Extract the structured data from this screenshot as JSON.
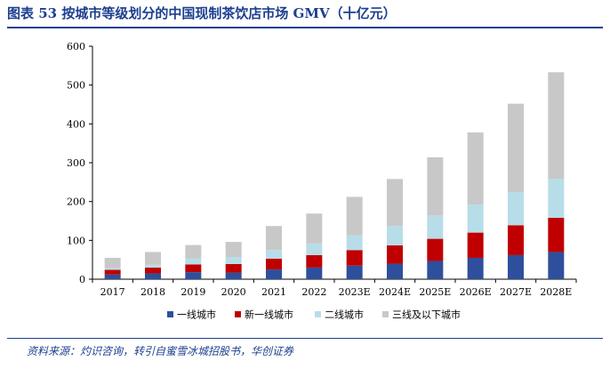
{
  "header": {
    "title": "图表 53  按城市等级划分的中国现制茶饮店市场 GMV（十亿元）"
  },
  "footer": {
    "source": "资料来源：灼识咨询，转引自蜜雪冰城招股书，华创证券"
  },
  "colors": {
    "rule": "#1c3f8f",
    "text": "#1c3f8f"
  },
  "chart_data": {
    "type": "bar",
    "stacked": true,
    "categories": [
      "2017",
      "2018",
      "2019",
      "2020",
      "2021",
      "2022",
      "2023E",
      "2024E",
      "2025E",
      "2026E",
      "2027E",
      "2028E"
    ],
    "ylim": [
      0,
      600
    ],
    "yticks": [
      0,
      100,
      200,
      300,
      400,
      500,
      600
    ],
    "legend_position": "bottom",
    "grid": false,
    "series": [
      {
        "name": "一线城市",
        "color": "#2e4f9b",
        "values": [
          12,
          15,
          18,
          17,
          25,
          30,
          35,
          40,
          47,
          55,
          62,
          70
        ]
      },
      {
        "name": "新一线城市",
        "color": "#c00000",
        "values": [
          12,
          15,
          20,
          22,
          28,
          32,
          40,
          47,
          57,
          65,
          77,
          88
        ]
      },
      {
        "name": "二线城市",
        "color": "#b7dde8",
        "values": [
          5,
          7,
          15,
          18,
          22,
          30,
          38,
          50,
          60,
          72,
          85,
          100
        ]
      },
      {
        "name": "三线及以下城市",
        "color": "#c8c8c8",
        "values": [
          26,
          33,
          35,
          39,
          62,
          77,
          99,
          121,
          150,
          186,
          228,
          275
        ]
      }
    ]
  }
}
